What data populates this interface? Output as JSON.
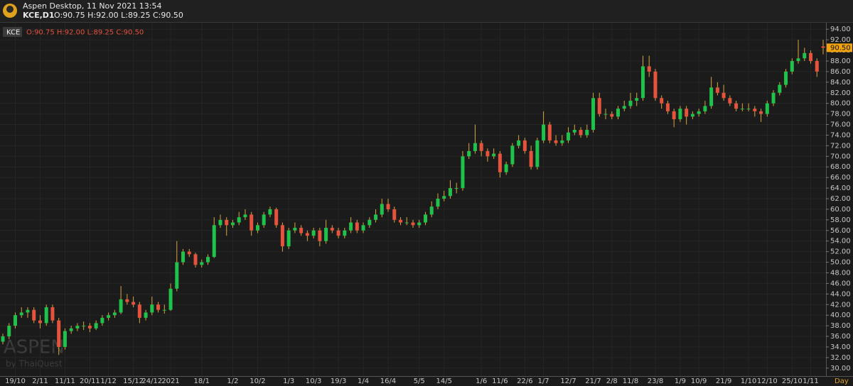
{
  "header": {
    "app_title": "Aspen Desktop, 11 Nov 2021 13:54",
    "symbol": "KCE,D1",
    "ohlc_text": "O:90.75 H:92.00 L:89.25 C:90.50"
  },
  "watermark": {
    "brand": "ASPEN",
    "by": "by ThaiQuest"
  },
  "chart_data": {
    "type": "candlestick",
    "x_axis_label": "Day",
    "grid": true,
    "ylim": [
      28.5,
      95.1
    ],
    "yticks": [
      {
        "value": 30,
        "label": "30.00"
      },
      {
        "value": 32,
        "label": "32.00"
      },
      {
        "value": 34,
        "label": "34.00"
      },
      {
        "value": 36,
        "label": "36.00"
      },
      {
        "value": 38,
        "label": "38.00"
      },
      {
        "value": 40,
        "label": "40.00"
      },
      {
        "value": 42,
        "label": "42.00"
      },
      {
        "value": 44,
        "label": "44.00"
      },
      {
        "value": 46,
        "label": "46.00"
      },
      {
        "value": 48,
        "label": "48.00"
      },
      {
        "value": 50,
        "label": "50.00"
      },
      {
        "value": 52,
        "label": "52.00"
      },
      {
        "value": 54,
        "label": "54.00"
      },
      {
        "value": 56,
        "label": "56.00"
      },
      {
        "value": 58,
        "label": "58.00"
      },
      {
        "value": 60,
        "label": "60.00"
      },
      {
        "value": 62,
        "label": "62.00"
      },
      {
        "value": 64,
        "label": "64.00"
      },
      {
        "value": 66,
        "label": "66.00"
      },
      {
        "value": 68,
        "label": "68.00"
      },
      {
        "value": 70,
        "label": "70.00"
      },
      {
        "value": 72,
        "label": "72.00"
      },
      {
        "value": 74,
        "label": "74.00"
      },
      {
        "value": 76,
        "label": "76.00"
      },
      {
        "value": 78,
        "label": "78.00"
      },
      {
        "value": 80,
        "label": "80.00"
      },
      {
        "value": 82,
        "label": "82.00"
      },
      {
        "value": 84,
        "label": "84.00"
      },
      {
        "value": 86,
        "label": "86.00"
      },
      {
        "value": 88,
        "label": "88.00"
      },
      {
        "value": 90,
        "label": "90.00"
      },
      {
        "value": 92,
        "label": "92.00"
      },
      {
        "value": 94,
        "label": "94.00"
      }
    ],
    "last_price": {
      "value": 90.5,
      "label": "90.50"
    },
    "categories": [
      null,
      null,
      "19/10",
      null,
      null,
      null,
      "2/11",
      null,
      null,
      null,
      "11/11",
      null,
      null,
      null,
      "20/11",
      null,
      null,
      "1/12",
      null,
      null,
      null,
      "15/12",
      null,
      null,
      "24/12",
      null,
      null,
      "2021",
      null,
      null,
      null,
      null,
      "18/1",
      null,
      null,
      null,
      null,
      "1/2",
      null,
      null,
      null,
      "10/2",
      null,
      null,
      null,
      null,
      "1/3",
      null,
      null,
      null,
      "10/3",
      null,
      null,
      null,
      "19/3",
      null,
      null,
      null,
      "1/4",
      null,
      null,
      null,
      "16/4",
      null,
      null,
      null,
      null,
      "5/5",
      null,
      null,
      null,
      "14/5",
      null,
      null,
      null,
      null,
      null,
      "1/6",
      null,
      null,
      "11/6",
      null,
      null,
      null,
      "22/6",
      null,
      null,
      "1/7",
      null,
      null,
      null,
      "12/7",
      null,
      null,
      null,
      "21/7",
      null,
      null,
      "2/8",
      null,
      null,
      "11/8",
      null,
      null,
      null,
      "23/8",
      null,
      null,
      null,
      "1/9",
      null,
      null,
      "10/9",
      null,
      null,
      null,
      "21/9",
      null,
      null,
      null,
      "1/10",
      null,
      null,
      "12/10",
      null,
      null,
      null,
      "25/10",
      null,
      null,
      "1/11",
      null,
      null
    ],
    "series": [
      {
        "name": "KCE",
        "up_color": "#1fc24a",
        "down_color": "#e5533d",
        "wick_color": "#d9a640",
        "ohlc": [
          [
            35,
            36.5,
            34.5,
            36
          ],
          [
            36,
            38.5,
            35.5,
            38
          ],
          [
            38,
            40.5,
            37.5,
            40
          ],
          [
            40,
            41.5,
            39.5,
            40.5
          ],
          [
            40.5,
            41.5,
            39.5,
            41
          ],
          [
            41,
            41.5,
            38.5,
            39
          ],
          [
            39,
            40,
            37.5,
            38.5
          ],
          [
            38.5,
            42,
            38,
            41.5
          ],
          [
            41.5,
            42,
            38.5,
            39
          ],
          [
            39,
            39.5,
            32.5,
            34
          ],
          [
            34,
            37.5,
            33.5,
            37
          ],
          [
            37,
            38,
            36.5,
            37.5
          ],
          [
            37.5,
            38.5,
            37,
            38
          ],
          [
            38,
            38.8,
            37.2,
            38
          ],
          [
            38,
            38.5,
            36.8,
            37.5
          ],
          [
            37.5,
            39,
            37.2,
            38.5
          ],
          [
            38.5,
            40,
            38,
            39.5
          ],
          [
            39.5,
            40.5,
            39,
            40
          ],
          [
            40,
            41,
            39.5,
            40.5
          ],
          [
            40.5,
            45.5,
            40.2,
            43
          ],
          [
            43,
            44,
            42,
            42.5
          ],
          [
            42.5,
            43.5,
            41.5,
            42
          ],
          [
            42,
            42.5,
            38.5,
            39.5
          ],
          [
            39.5,
            41,
            39,
            40.5
          ],
          [
            40.5,
            43.5,
            40,
            42
          ],
          [
            42,
            42.5,
            40.5,
            41
          ],
          [
            41,
            42,
            40.3,
            41
          ],
          [
            41,
            46,
            40.8,
            45
          ],
          [
            45,
            54,
            44.5,
            50
          ],
          [
            50,
            52.5,
            49.5,
            52
          ],
          [
            52,
            52.5,
            51,
            51.5
          ],
          [
            51.5,
            51.8,
            49,
            49.5
          ],
          [
            49.5,
            50.5,
            49,
            50
          ],
          [
            50,
            51.5,
            49.5,
            51
          ],
          [
            51,
            58.5,
            50.8,
            57
          ],
          [
            57,
            59,
            56.5,
            58
          ],
          [
            58,
            58.5,
            55,
            57
          ],
          [
            57,
            58,
            56.5,
            57.5
          ],
          [
            57.5,
            59.5,
            57,
            58.5
          ],
          [
            58.5,
            60,
            58,
            59
          ],
          [
            59,
            59.5,
            55,
            56
          ],
          [
            56,
            57.5,
            55.5,
            57
          ],
          [
            57,
            59.5,
            56.5,
            59
          ],
          [
            59,
            60.5,
            58.5,
            60
          ],
          [
            60,
            60.3,
            56.5,
            57
          ],
          [
            57,
            57.5,
            52,
            53
          ],
          [
            53,
            56.5,
            52.5,
            56
          ],
          [
            56,
            57.5,
            55.5,
            56.5
          ],
          [
            56.5,
            57,
            55,
            55.5
          ],
          [
            55.5,
            56,
            54,
            55
          ],
          [
            55,
            56.5,
            54.5,
            56
          ],
          [
            56,
            56.5,
            53,
            54
          ],
          [
            54,
            58,
            53.5,
            56.5
          ],
          [
            56.5,
            57,
            55.5,
            56
          ],
          [
            56,
            56.5,
            54.5,
            55
          ],
          [
            55,
            56.5,
            54.5,
            56
          ],
          [
            56,
            58.5,
            55.5,
            57.5
          ],
          [
            57.5,
            58,
            55.5,
            56
          ],
          [
            56,
            57.5,
            55.5,
            57
          ],
          [
            57,
            58.5,
            56.5,
            58
          ],
          [
            58,
            60,
            57.5,
            59
          ],
          [
            59,
            62,
            58.5,
            61
          ],
          [
            61,
            62,
            59.5,
            60
          ],
          [
            60,
            60.5,
            57.5,
            58
          ],
          [
            58,
            58.5,
            57,
            57.5
          ],
          [
            57.5,
            58.5,
            57,
            57.5
          ],
          [
            57.5,
            58,
            56.5,
            57
          ],
          [
            57,
            58,
            56.5,
            57.5
          ],
          [
            57.5,
            59.5,
            57,
            59
          ],
          [
            59,
            61.5,
            58.5,
            60.5
          ],
          [
            60.5,
            63,
            60,
            62
          ],
          [
            62,
            63.5,
            61.5,
            62.5
          ],
          [
            62.5,
            65.5,
            62,
            64
          ],
          [
            64,
            65,
            63,
            64
          ],
          [
            64,
            71,
            63.5,
            70
          ],
          [
            70,
            72.5,
            69.5,
            71
          ],
          [
            71,
            76,
            70.5,
            72.5
          ],
          [
            72.5,
            73,
            70,
            71
          ],
          [
            71,
            71.5,
            69,
            70
          ],
          [
            70,
            71.5,
            69.5,
            70.5
          ],
          [
            70.5,
            71,
            66,
            67
          ],
          [
            67,
            69,
            66.5,
            68.5
          ],
          [
            68.5,
            72.5,
            68,
            72
          ],
          [
            72,
            74,
            71.5,
            73
          ],
          [
            73,
            73.5,
            70.5,
            71
          ],
          [
            71,
            72,
            67.5,
            68
          ],
          [
            68,
            73.5,
            67.5,
            73
          ],
          [
            73,
            78.5,
            72.5,
            76
          ],
          [
            76,
            76.5,
            72.5,
            73
          ],
          [
            73,
            74,
            72,
            72.5
          ],
          [
            72.5,
            74,
            72,
            73
          ],
          [
            73,
            75.5,
            72.5,
            74.5
          ],
          [
            74.5,
            76,
            74,
            75
          ],
          [
            75,
            75.5,
            73.5,
            74
          ],
          [
            74,
            76,
            73.5,
            75
          ],
          [
            75,
            82,
            74.5,
            81
          ],
          [
            81,
            82,
            77.5,
            78
          ],
          [
            78,
            79,
            77,
            78
          ],
          [
            78,
            78.5,
            77,
            77.5
          ],
          [
            77.5,
            79.5,
            77,
            79
          ],
          [
            79,
            80.5,
            78.5,
            79.5
          ],
          [
            79.5,
            82,
            79,
            80.5
          ],
          [
            80.5,
            82,
            79.5,
            81
          ],
          [
            81,
            89,
            80.5,
            87
          ],
          [
            87,
            89,
            85,
            86
          ],
          [
            86,
            86.5,
            80.5,
            81
          ],
          [
            81,
            81.5,
            79,
            80
          ],
          [
            80,
            80.5,
            78,
            78.5
          ],
          [
            78.5,
            79,
            75.5,
            77
          ],
          [
            77,
            79.5,
            76.5,
            79
          ],
          [
            79,
            79.5,
            76,
            77.5
          ],
          [
            77.5,
            78.5,
            77,
            78
          ],
          [
            78,
            79,
            77.5,
            78.5
          ],
          [
            78.5,
            80.5,
            78,
            79.5
          ],
          [
            79.5,
            85,
            79,
            83
          ],
          [
            83,
            84,
            81.5,
            82
          ],
          [
            82,
            83.5,
            80.5,
            81
          ],
          [
            81,
            81.5,
            79.5,
            80
          ],
          [
            80,
            80.5,
            78.5,
            79
          ],
          [
            79,
            80,
            78.5,
            79
          ],
          [
            79,
            80,
            78.5,
            79
          ],
          [
            79,
            79.5,
            77.5,
            78.5
          ],
          [
            78.5,
            79,
            76.5,
            78
          ],
          [
            78,
            80.5,
            77.5,
            80
          ],
          [
            80,
            82.5,
            79.5,
            82
          ],
          [
            82,
            84,
            81.5,
            83.5
          ],
          [
            83.5,
            86.5,
            83,
            86
          ],
          [
            86,
            88.5,
            85.5,
            88
          ],
          [
            88,
            92,
            87.5,
            88.5
          ],
          [
            88.5,
            90.5,
            88,
            89.5
          ],
          [
            89.5,
            90,
            87.5,
            88
          ],
          [
            88,
            88.5,
            85,
            86
          ],
          [
            90.75,
            92,
            89.25,
            90.5
          ]
        ]
      }
    ]
  }
}
